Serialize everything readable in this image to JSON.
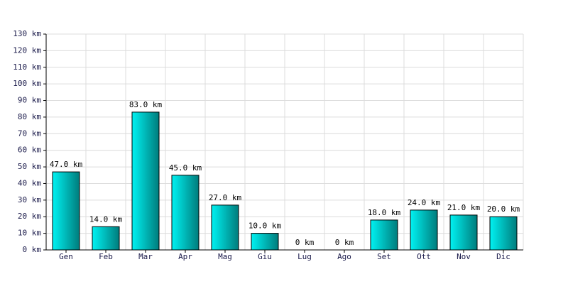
{
  "chart_data": {
    "type": "bar",
    "categories": [
      "Gen",
      "Feb",
      "Mar",
      "Apr",
      "Mag",
      "Giu",
      "Lug",
      "Ago",
      "Set",
      "Ott",
      "Nov",
      "Dic"
    ],
    "values": [
      47,
      14,
      83,
      45,
      27,
      10,
      0,
      0,
      18,
      24,
      21,
      20
    ],
    "value_labels": [
      "47.0 km",
      "14.0 km",
      "83.0 km",
      "45.0 km",
      "27.0 km",
      "10.0 km",
      "0 km",
      "0 km",
      "18.0 km",
      "24.0 km",
      "21.0 km",
      "20.0 km"
    ],
    "gradient": [
      "#00f2f2",
      "#007c7c"
    ],
    "ylim": [
      0,
      130
    ],
    "yticks": [
      {
        "value": 0,
        "label": "0 km"
      },
      {
        "value": 10,
        "label": "10 km"
      },
      {
        "value": 20,
        "label": "20 km"
      },
      {
        "value": 30,
        "label": "30 km"
      },
      {
        "value": 40,
        "label": "40 km"
      },
      {
        "value": 50,
        "label": "50 km"
      },
      {
        "value": 60,
        "label": "60 km"
      },
      {
        "value": 70,
        "label": "70 km"
      },
      {
        "value": 80,
        "label": "80 km"
      },
      {
        "value": 90,
        "label": "90 km"
      },
      {
        "value": 100,
        "label": "100 km"
      },
      {
        "value": 110,
        "label": "110 km"
      },
      {
        "value": 120,
        "label": "120 km"
      },
      {
        "value": 130,
        "label": "130 km"
      }
    ],
    "grid": true
  }
}
